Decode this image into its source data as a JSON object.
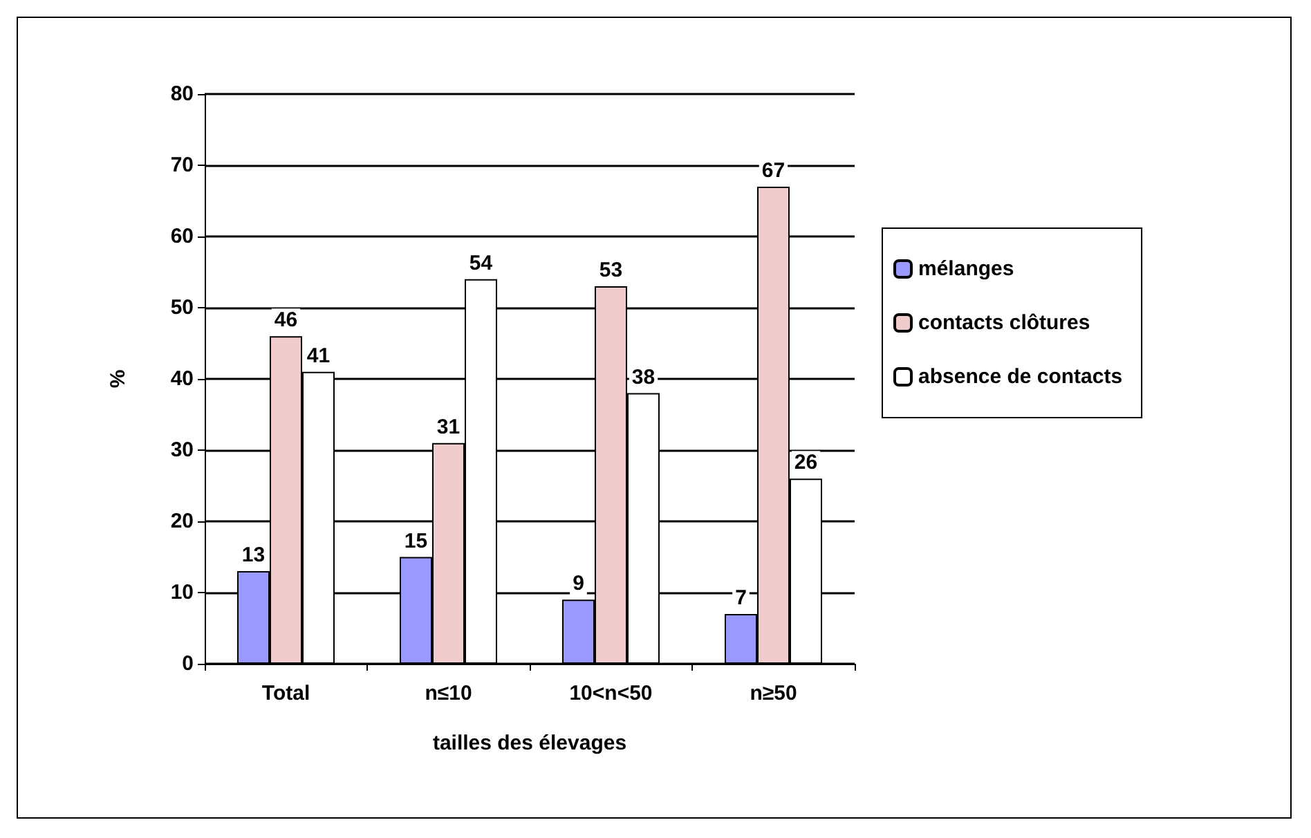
{
  "chart_data": {
    "type": "bar",
    "xlabel": "tailles des élevages",
    "ylabel": "%",
    "categories": [
      "Total",
      "n≤10",
      "10<n<50",
      "n≥50"
    ],
    "series": [
      {
        "name": "mélanges",
        "color": "#9999ff",
        "values": [
          13,
          15,
          9,
          7
        ]
      },
      {
        "name": "contacts clôtures",
        "color": "#f0cccc",
        "values": [
          46,
          31,
          53,
          67
        ]
      },
      {
        "name": "absence de contacts",
        "color": "#ffffff",
        "values": [
          41,
          54,
          38,
          26
        ]
      }
    ],
    "ylim": [
      0,
      80
    ],
    "yticks": [
      0,
      10,
      20,
      30,
      40,
      50,
      60,
      70,
      80
    ],
    "grid": "y",
    "legend": "right",
    "data_labels": true
  }
}
